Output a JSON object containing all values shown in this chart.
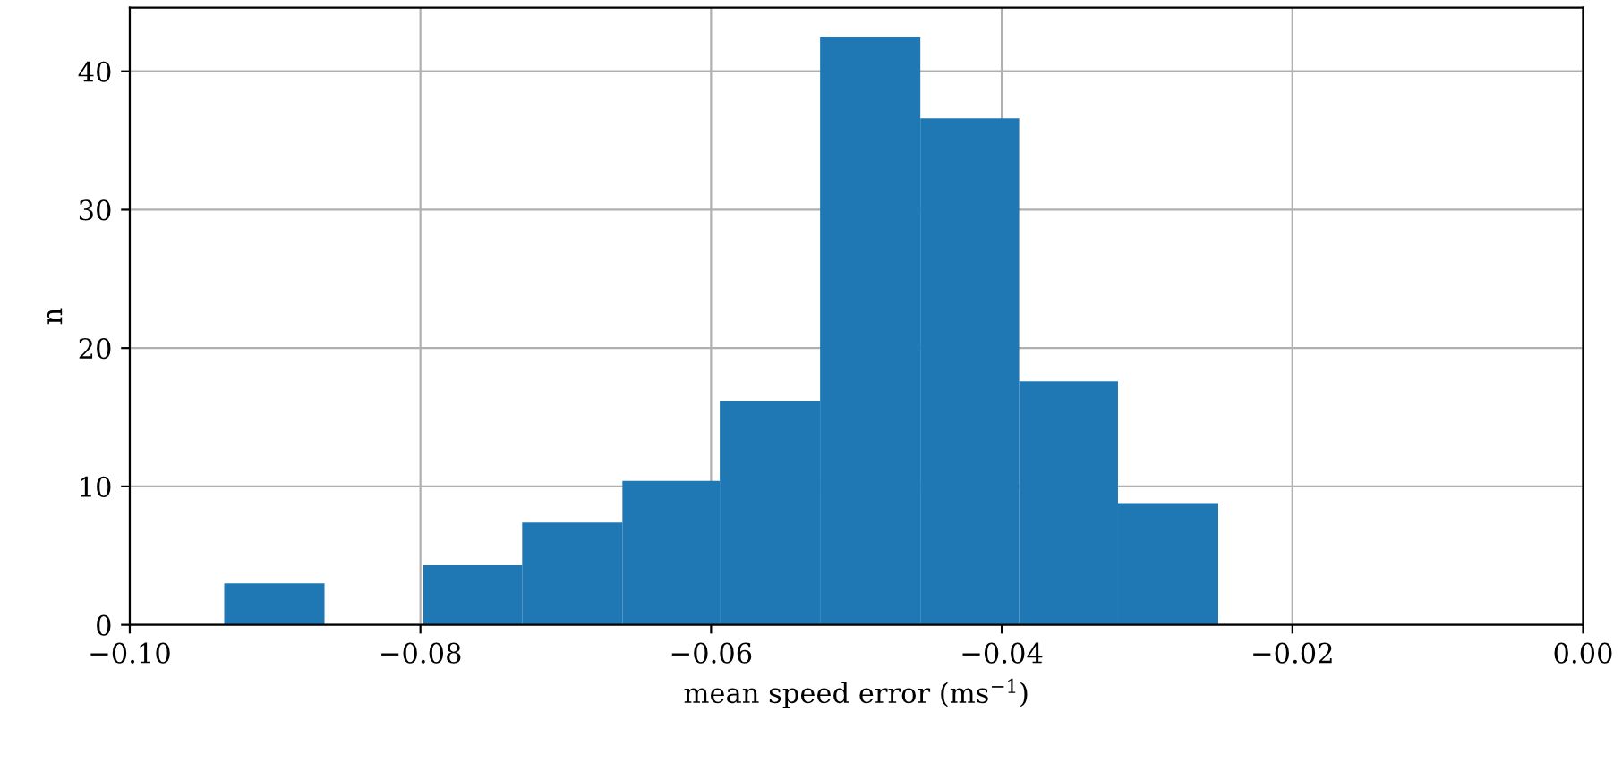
{
  "chart_data": {
    "type": "histogram",
    "bins": [
      -0.0935,
      -0.0866,
      -0.0798,
      -0.073,
      -0.0661,
      -0.0594,
      -0.0525,
      -0.0456,
      -0.0388,
      -0.032,
      -0.0251
    ],
    "values": [
      3.0,
      0,
      4.3,
      7.4,
      10.4,
      16.2,
      42.5,
      36.6,
      17.6,
      8.8
    ],
    "color": "#1f77b4",
    "xlabel": "mean speed error (ms$^{−1}$)",
    "ylabel": "n",
    "xlim": [
      -0.1,
      0.0
    ],
    "ylim": [
      0,
      44.6
    ],
    "xticks": [
      {
        "value": -0.1,
        "label": "−0.10"
      },
      {
        "value": -0.08,
        "label": "−0.08"
      },
      {
        "value": -0.06,
        "label": "−0.06"
      },
      {
        "value": -0.04,
        "label": "−0.04"
      },
      {
        "value": -0.02,
        "label": "−0.02"
      },
      {
        "value": 0.0,
        "label": "0.00"
      }
    ],
    "yticks": [
      0,
      10,
      20,
      30,
      40
    ],
    "grid": true
  }
}
